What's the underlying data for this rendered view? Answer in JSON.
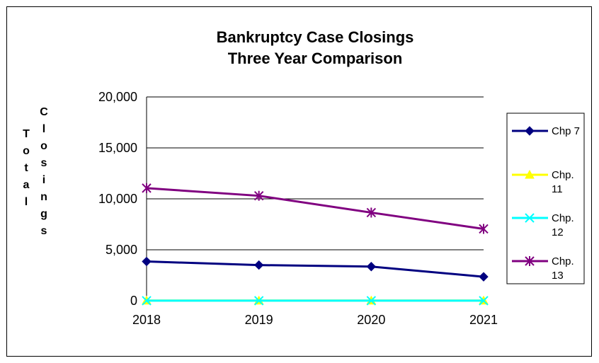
{
  "chart_data": {
    "type": "line",
    "title": [
      "Bankruptcy Case Closings",
      "Three Year Comparison"
    ],
    "ylabel_columns": [
      "Total",
      "Closings"
    ],
    "x": [
      "2018",
      "2019",
      "2020",
      "2021"
    ],
    "ylim": [
      0,
      20000
    ],
    "yticks": [
      0,
      5000,
      10000,
      15000,
      20000
    ],
    "ytick_labels": [
      "0",
      "5,000",
      "10,000",
      "15,000",
      "20,000"
    ],
    "grid": "horizontal",
    "legend_position": "right",
    "series": [
      {
        "name": "Chp 7",
        "legend_lines": [
          "Chp 7"
        ],
        "values": [
          3850,
          3500,
          3350,
          2350
        ],
        "color": "#000080",
        "marker": "diamond"
      },
      {
        "name": "Chp. 11",
        "legend_lines": [
          "Chp.",
          "11"
        ],
        "values": [
          20,
          15,
          18,
          15
        ],
        "color": "#ffff00",
        "marker": "triangle"
      },
      {
        "name": "Chp. 12",
        "legend_lines": [
          "Chp.",
          "12"
        ],
        "values": [
          5,
          5,
          5,
          5
        ],
        "color": "#00ffff",
        "marker": "x"
      },
      {
        "name": "Chp. 13",
        "legend_lines": [
          "Chp.",
          "13"
        ],
        "values": [
          11050,
          10300,
          8650,
          7050
        ],
        "color": "#800080",
        "marker": "star"
      }
    ]
  }
}
